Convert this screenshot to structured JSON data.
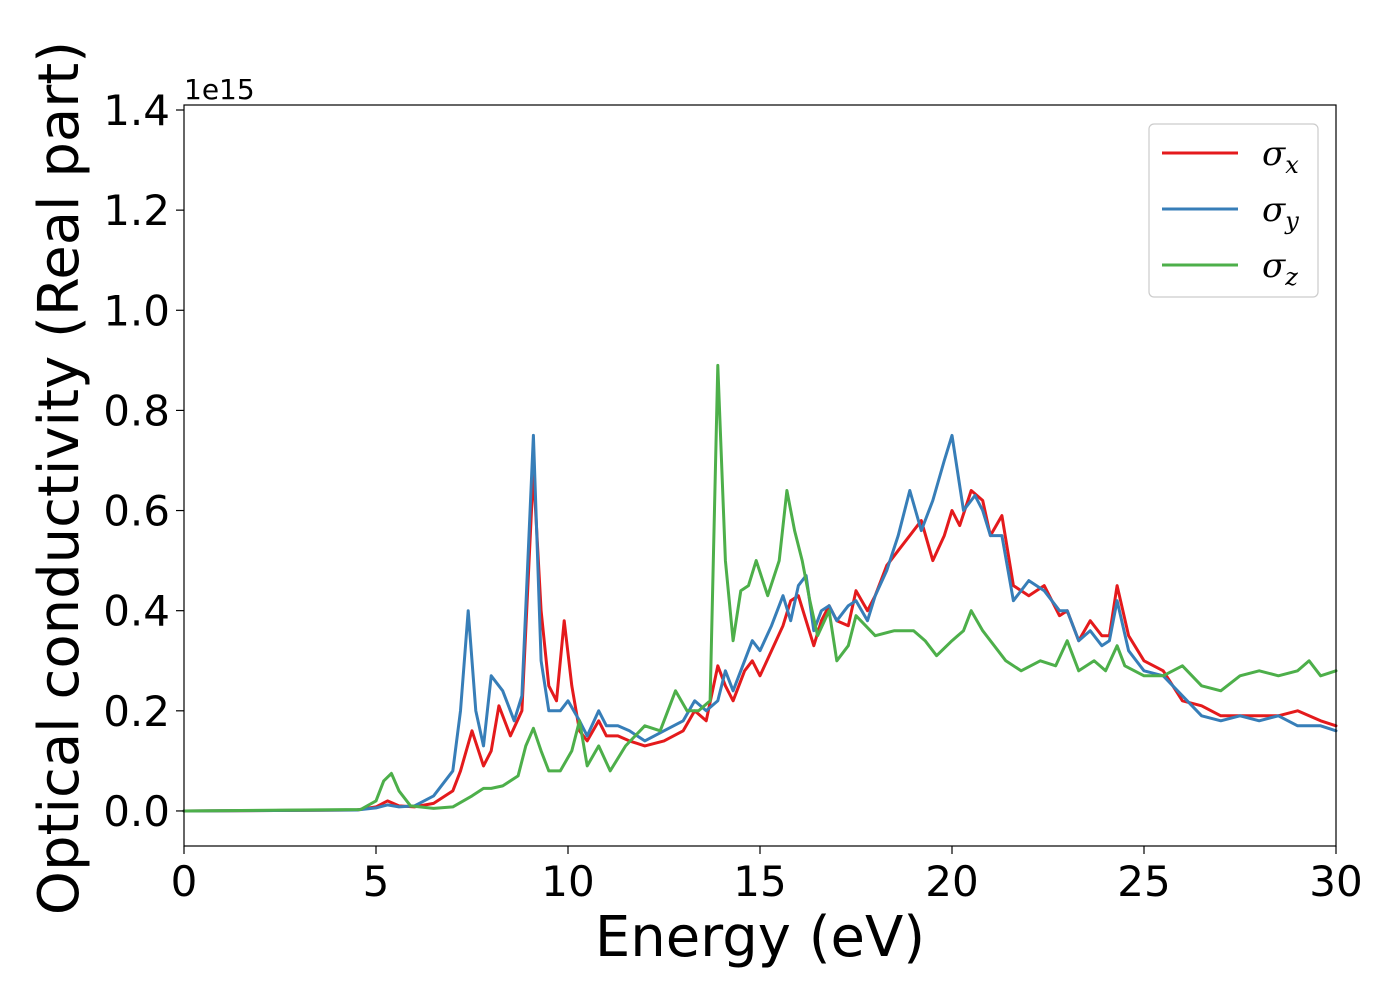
{
  "chart_data": {
    "type": "line",
    "title": "",
    "xlabel": "Energy (eV)",
    "ylabel": "Optical conductivity (Real part)",
    "y_offset_text": "1e15",
    "xlim": [
      0,
      30
    ],
    "ylim": [
      -0.07,
      1.41
    ],
    "xticks": [
      0,
      5,
      10,
      15,
      20,
      25,
      30
    ],
    "xtick_labels": [
      "0",
      "5",
      "10",
      "15",
      "20",
      "25",
      "30"
    ],
    "yticks": [
      0.0,
      0.2,
      0.4,
      0.6,
      0.8,
      1.0,
      1.2,
      1.4
    ],
    "ytick_labels": [
      "0.0",
      "0.2",
      "0.4",
      "0.6",
      "0.8",
      "1.0",
      "1.2",
      "1.4"
    ],
    "grid": false,
    "legend_position": "top-right",
    "series": [
      {
        "name": "σx",
        "legend_symbol": "σ",
        "legend_subscript": "x",
        "color": "#e41a1c",
        "x": [
          0,
          4.5,
          5.0,
          5.3,
          5.6,
          6.0,
          6.5,
          7.0,
          7.2,
          7.5,
          7.8,
          8.0,
          8.2,
          8.5,
          8.8,
          9.1,
          9.3,
          9.5,
          9.7,
          9.9,
          10.1,
          10.3,
          10.5,
          10.8,
          11.0,
          11.3,
          11.6,
          12.0,
          12.5,
          13.0,
          13.3,
          13.6,
          13.9,
          14.1,
          14.3,
          14.6,
          14.8,
          15.0,
          15.3,
          15.6,
          15.8,
          16.0,
          16.2,
          16.4,
          16.6,
          16.8,
          17.0,
          17.3,
          17.5,
          17.8,
          18.0,
          18.3,
          18.6,
          18.9,
          19.2,
          19.5,
          19.8,
          20.0,
          20.2,
          20.5,
          20.8,
          21.0,
          21.3,
          21.6,
          22.0,
          22.4,
          22.8,
          23.0,
          23.3,
          23.6,
          23.9,
          24.1,
          24.3,
          24.6,
          25.0,
          25.5,
          26.0,
          26.5,
          27.0,
          27.5,
          28.0,
          28.5,
          29.0,
          29.3,
          29.6,
          30.0
        ],
        "y": [
          0.0,
          0.002,
          0.008,
          0.02,
          0.01,
          0.008,
          0.015,
          0.04,
          0.08,
          0.16,
          0.09,
          0.12,
          0.21,
          0.15,
          0.2,
          0.68,
          0.4,
          0.25,
          0.22,
          0.38,
          0.25,
          0.16,
          0.14,
          0.18,
          0.15,
          0.15,
          0.14,
          0.13,
          0.14,
          0.16,
          0.2,
          0.18,
          0.29,
          0.25,
          0.22,
          0.28,
          0.3,
          0.27,
          0.32,
          0.37,
          0.42,
          0.43,
          0.38,
          0.33,
          0.38,
          0.41,
          0.38,
          0.37,
          0.44,
          0.4,
          0.43,
          0.49,
          0.52,
          0.55,
          0.58,
          0.5,
          0.55,
          0.6,
          0.57,
          0.64,
          0.62,
          0.55,
          0.59,
          0.45,
          0.43,
          0.45,
          0.39,
          0.4,
          0.34,
          0.38,
          0.35,
          0.35,
          0.45,
          0.35,
          0.3,
          0.28,
          0.22,
          0.21,
          0.19,
          0.19,
          0.19,
          0.19,
          0.2,
          0.19,
          0.18,
          0.17
        ]
      },
      {
        "name": "σy",
        "legend_symbol": "σ",
        "legend_subscript": "y",
        "color": "#377eb8",
        "x": [
          0,
          4.5,
          5.0,
          5.3,
          5.6,
          6.0,
          6.5,
          7.0,
          7.2,
          7.4,
          7.6,
          7.8,
          8.0,
          8.3,
          8.6,
          8.8,
          9.1,
          9.3,
          9.5,
          9.8,
          10.0,
          10.3,
          10.5,
          10.8,
          11.0,
          11.3,
          11.6,
          12.0,
          12.5,
          13.0,
          13.3,
          13.6,
          13.9,
          14.1,
          14.3,
          14.6,
          14.8,
          15.0,
          15.3,
          15.6,
          15.8,
          16.0,
          16.2,
          16.4,
          16.6,
          16.8,
          17.0,
          17.3,
          17.5,
          17.8,
          18.0,
          18.3,
          18.6,
          18.9,
          19.2,
          19.5,
          19.8,
          20.0,
          20.3,
          20.6,
          20.8,
          21.0,
          21.3,
          21.6,
          22.0,
          22.4,
          22.8,
          23.0,
          23.3,
          23.6,
          23.9,
          24.1,
          24.3,
          24.6,
          25.0,
          25.5,
          26.0,
          26.5,
          27.0,
          27.5,
          28.0,
          28.5,
          29.0,
          29.3,
          29.6,
          30.0
        ],
        "y": [
          0.0,
          0.002,
          0.006,
          0.012,
          0.008,
          0.01,
          0.03,
          0.08,
          0.2,
          0.4,
          0.2,
          0.13,
          0.27,
          0.24,
          0.18,
          0.23,
          0.75,
          0.3,
          0.2,
          0.2,
          0.22,
          0.18,
          0.15,
          0.2,
          0.17,
          0.17,
          0.16,
          0.14,
          0.16,
          0.18,
          0.22,
          0.2,
          0.22,
          0.28,
          0.24,
          0.3,
          0.34,
          0.32,
          0.37,
          0.43,
          0.38,
          0.45,
          0.47,
          0.36,
          0.4,
          0.41,
          0.38,
          0.41,
          0.42,
          0.38,
          0.43,
          0.48,
          0.55,
          0.64,
          0.56,
          0.62,
          0.7,
          0.75,
          0.6,
          0.63,
          0.6,
          0.55,
          0.55,
          0.42,
          0.46,
          0.44,
          0.4,
          0.4,
          0.34,
          0.36,
          0.33,
          0.34,
          0.42,
          0.32,
          0.28,
          0.27,
          0.23,
          0.19,
          0.18,
          0.19,
          0.18,
          0.19,
          0.17,
          0.17,
          0.17,
          0.16
        ]
      },
      {
        "name": "σz",
        "legend_symbol": "σ",
        "legend_subscript": "z",
        "color": "#4daf4a",
        "x": [
          0,
          4.6,
          5.0,
          5.2,
          5.4,
          5.6,
          5.9,
          6.5,
          7.0,
          7.5,
          7.8,
          8.0,
          8.3,
          8.7,
          8.9,
          9.1,
          9.3,
          9.5,
          9.8,
          10.1,
          10.3,
          10.5,
          10.8,
          11.1,
          11.5,
          12.0,
          12.4,
          12.8,
          13.1,
          13.4,
          13.7,
          13.9,
          14.1,
          14.3,
          14.5,
          14.7,
          14.9,
          15.2,
          15.5,
          15.7,
          15.9,
          16.1,
          16.3,
          16.5,
          16.8,
          17.0,
          17.3,
          17.5,
          18.0,
          18.5,
          19.0,
          19.3,
          19.6,
          20.0,
          20.3,
          20.5,
          20.8,
          21.1,
          21.4,
          21.8,
          22.3,
          22.7,
          23.0,
          23.3,
          23.7,
          24.0,
          24.3,
          24.5,
          25.0,
          25.5,
          26.0,
          26.5,
          27.0,
          27.5,
          28.0,
          28.5,
          29.0,
          29.3,
          29.6,
          30.0
        ],
        "y": [
          0.0,
          0.003,
          0.02,
          0.06,
          0.075,
          0.04,
          0.01,
          0.005,
          0.008,
          0.03,
          0.045,
          0.045,
          0.05,
          0.07,
          0.13,
          0.165,
          0.12,
          0.08,
          0.08,
          0.12,
          0.18,
          0.09,
          0.13,
          0.08,
          0.13,
          0.17,
          0.16,
          0.24,
          0.2,
          0.2,
          0.22,
          0.89,
          0.5,
          0.34,
          0.44,
          0.45,
          0.5,
          0.43,
          0.5,
          0.64,
          0.56,
          0.5,
          0.42,
          0.35,
          0.4,
          0.3,
          0.33,
          0.39,
          0.35,
          0.36,
          0.36,
          0.34,
          0.31,
          0.34,
          0.36,
          0.4,
          0.36,
          0.33,
          0.3,
          0.28,
          0.3,
          0.29,
          0.34,
          0.28,
          0.3,
          0.28,
          0.33,
          0.29,
          0.27,
          0.27,
          0.29,
          0.25,
          0.24,
          0.27,
          0.28,
          0.27,
          0.28,
          0.3,
          0.27,
          0.28
        ]
      }
    ]
  }
}
